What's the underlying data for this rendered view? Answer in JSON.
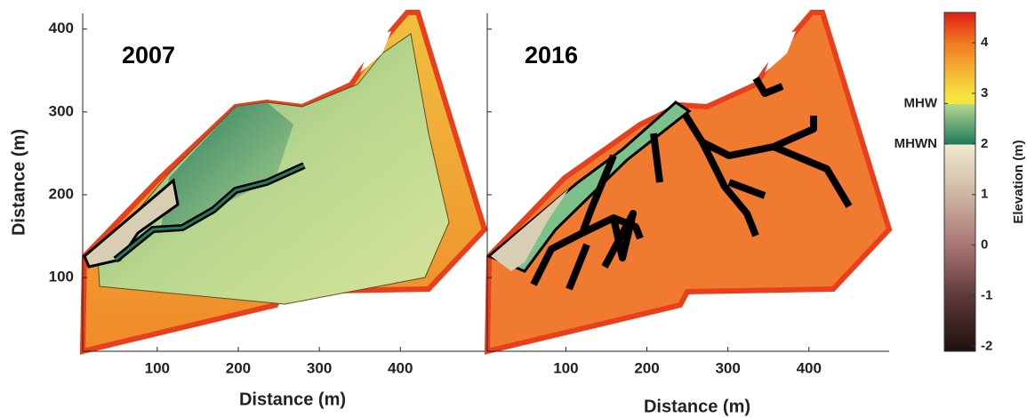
{
  "chart_data": [
    {
      "type": "map",
      "title": "2007",
      "xlabel": "Distance (m)",
      "ylabel": "Distance (m)",
      "xlim": [
        8,
        504
      ],
      "ylim": [
        11,
        419
      ],
      "xticks": [
        100,
        200,
        300,
        400
      ],
      "yticks": [
        100,
        200,
        300,
        400
      ]
    },
    {
      "type": "map",
      "title": "2016",
      "xlabel": "Distance (m)",
      "xlim": [
        3,
        499
      ],
      "ylim": [
        11,
        419
      ],
      "xticks": [
        100,
        200,
        300,
        400
      ],
      "yticks": [
        100,
        200,
        300,
        400
      ]
    }
  ],
  "colorbar": {
    "label": "Elevation (m)",
    "lim": [
      -2.1,
      4.6
    ],
    "ticks": [
      -2,
      -1,
      0,
      1,
      2,
      3,
      4
    ],
    "levels": [
      {
        "value": 2.8,
        "label": "MHW"
      },
      {
        "value": 2.0,
        "label": "MHWN"
      }
    ]
  }
}
